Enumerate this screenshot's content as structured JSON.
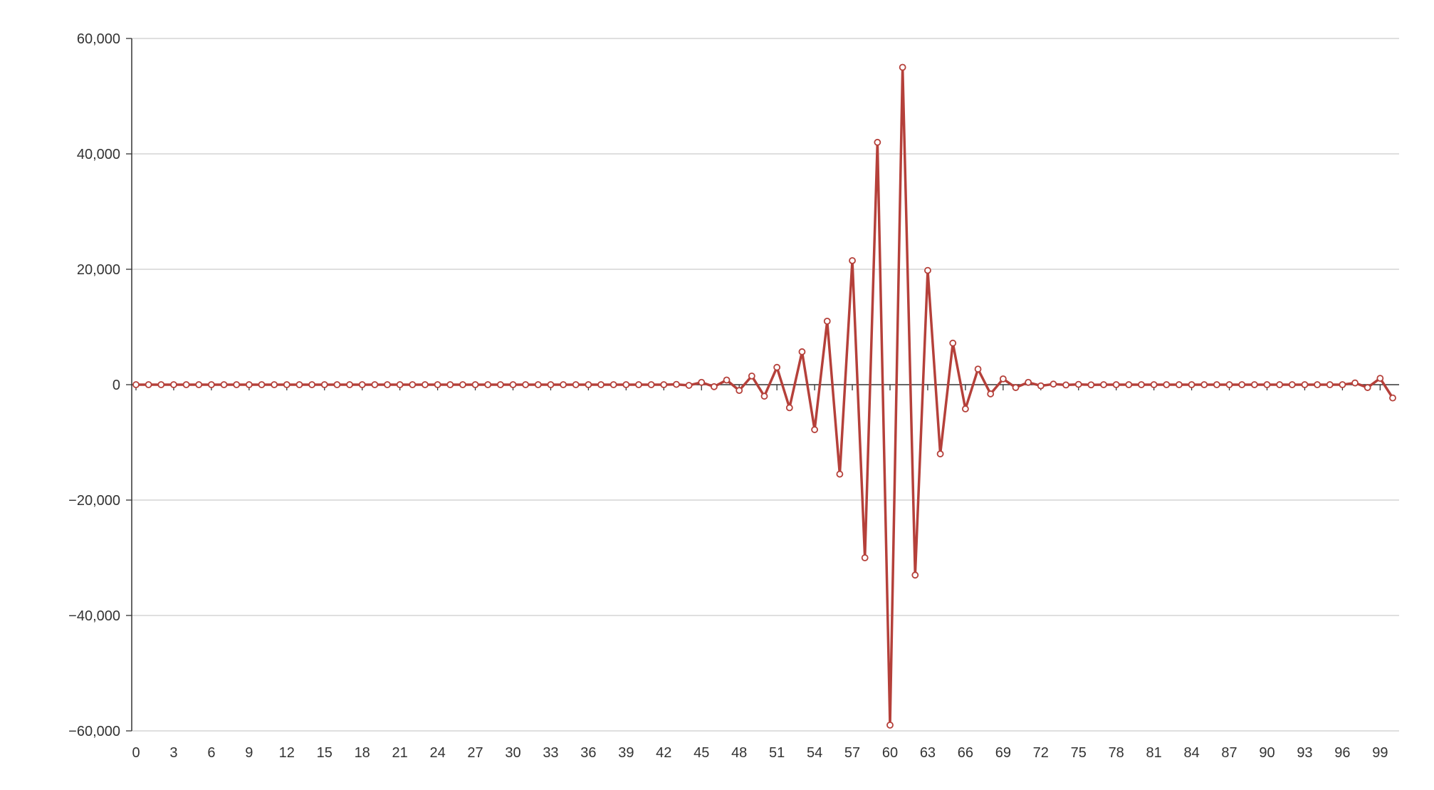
{
  "chart_data": {
    "type": "line",
    "x": [
      0,
      1,
      2,
      3,
      4,
      5,
      6,
      7,
      8,
      9,
      10,
      11,
      12,
      13,
      14,
      15,
      16,
      17,
      18,
      19,
      20,
      21,
      22,
      23,
      24,
      25,
      26,
      27,
      28,
      29,
      30,
      31,
      32,
      33,
      34,
      35,
      36,
      37,
      38,
      39,
      40,
      41,
      42,
      43,
      44,
      45,
      46,
      47,
      48,
      49,
      50,
      51,
      52,
      53,
      54,
      55,
      56,
      57,
      58,
      59,
      60,
      61,
      62,
      63,
      64,
      65,
      66,
      67,
      68,
      69,
      70,
      71,
      72,
      73,
      74,
      75,
      76,
      77,
      78,
      79,
      80,
      81,
      82,
      83,
      84,
      85,
      86,
      87,
      88,
      89,
      90,
      91,
      92,
      93,
      94,
      95,
      96,
      97,
      98,
      99,
      100
    ],
    "xticks": [
      0,
      3,
      6,
      9,
      12,
      15,
      18,
      21,
      24,
      27,
      30,
      33,
      36,
      39,
      42,
      45,
      48,
      51,
      54,
      57,
      60,
      63,
      66,
      69,
      72,
      75,
      78,
      81,
      84,
      87,
      90,
      93,
      96,
      99
    ],
    "series": [
      {
        "color": "#b5403a",
        "values": [
          0,
          0,
          0,
          0,
          0,
          0,
          0,
          0,
          0,
          0,
          0,
          0,
          0,
          0,
          0,
          0,
          0,
          0,
          0,
          0,
          0,
          0,
          0,
          0,
          0,
          0,
          0,
          0,
          0,
          0,
          0,
          0,
          0,
          0,
          0,
          0,
          0,
          0,
          0,
          0,
          0,
          0,
          0,
          50,
          -120,
          400,
          -350,
          800,
          -1000,
          1500,
          -2000,
          3000,
          -4000,
          5700,
          -7800,
          11000,
          -15500,
          21500,
          -30000,
          42000,
          -59000,
          55000,
          -33000,
          19800,
          -12000,
          7200,
          -4200,
          2700,
          -1600,
          1000,
          -500,
          400,
          -200,
          100,
          -50,
          50,
          -30,
          0,
          0,
          0,
          0,
          0,
          0,
          0,
          0,
          0,
          0,
          0,
          0,
          0,
          0,
          0,
          0,
          0,
          0,
          0,
          0,
          300,
          -500,
          1100,
          -2300
        ]
      }
    ],
    "ylim": [
      -60000,
      60000
    ],
    "yticks": [
      -60000,
      -40000,
      -20000,
      0,
      20000,
      40000,
      60000
    ],
    "ytick_labels": [
      "−60,000",
      "−40,000",
      "−20,000",
      "0",
      "20,000",
      "40,000",
      "60,000"
    ],
    "grid": true,
    "colors": {
      "line": "#b5403a",
      "grid": "#cccccc",
      "axis": "#333333"
    }
  }
}
